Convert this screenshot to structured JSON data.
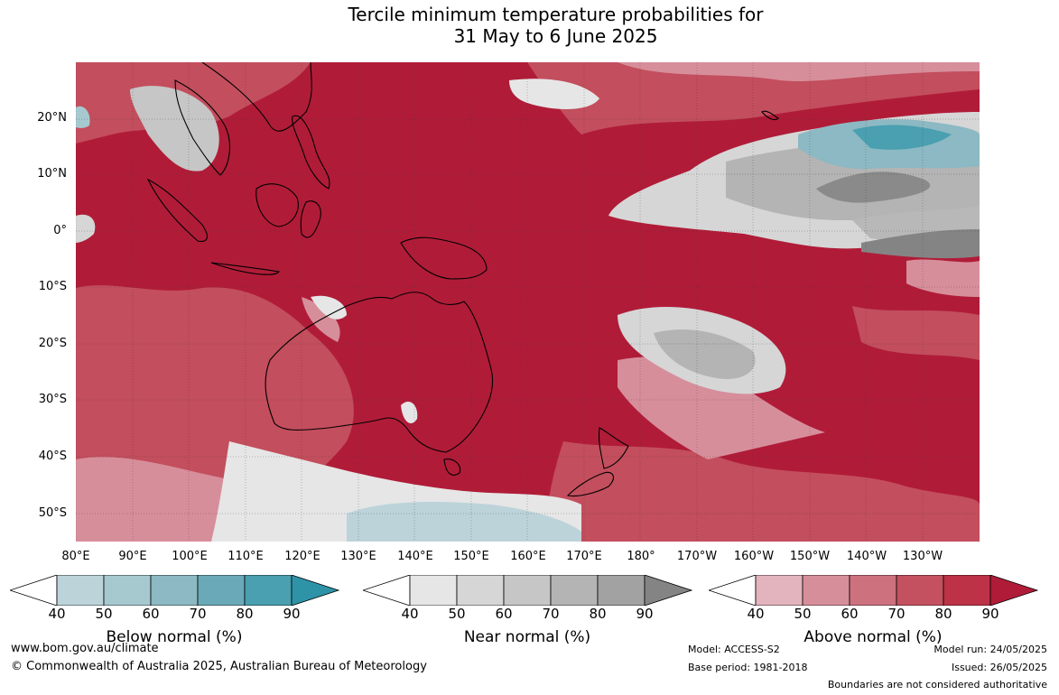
{
  "title_line1": "Tercile minimum temperature probabilities for",
  "title_line2": "31 May to 6 June 2025",
  "lat_labels": [
    "20°N",
    "10°N",
    "0°",
    "10°S",
    "20°S",
    "30°S",
    "40°S",
    "50°S"
  ],
  "lon_labels": [
    "80°E",
    "90°E",
    "100°E",
    "110°E",
    "120°E",
    "130°E",
    "140°E",
    "150°E",
    "160°E",
    "170°E",
    "180°",
    "170°W",
    "160°W",
    "150°W",
    "140°W",
    "130°W"
  ],
  "colorbars": [
    {
      "label": "Below normal (%)",
      "ticks": [
        "40",
        "50",
        "60",
        "70",
        "80",
        "90"
      ],
      "colors": [
        "#bcd3da",
        "#a6c9d0",
        "#8cb9c3",
        "#6aa9b7",
        "#4a9fb0",
        "#2e93a6"
      ]
    },
    {
      "label": "Near normal (%)",
      "ticks": [
        "40",
        "50",
        "60",
        "70",
        "80",
        "90"
      ],
      "colors": [
        "#e6e6e6",
        "#d6d6d6",
        "#c6c6c6",
        "#b4b4b4",
        "#a2a2a2",
        "#848484"
      ]
    },
    {
      "label": "Above normal (%)",
      "ticks": [
        "40",
        "50",
        "60",
        "70",
        "80",
        "90"
      ],
      "colors": [
        "#e3b4bd",
        "#d78e9b",
        "#cd717f",
        "#c4515f",
        "#bd3246",
        "#b01c38"
      ]
    }
  ],
  "footer": {
    "url": "www.bom.gov.au/climate",
    "copyright": "© Commonwealth of Australia 2025, Australian Bureau of Meteorology",
    "model": "Model: ACCESS-S2",
    "base_period": "Base period: 1981-2018",
    "model_run": "Model run: 24/05/2025",
    "issued": "Issued: 26/05/2025",
    "disclaimer": "Boundaries are not considered authoritative"
  }
}
